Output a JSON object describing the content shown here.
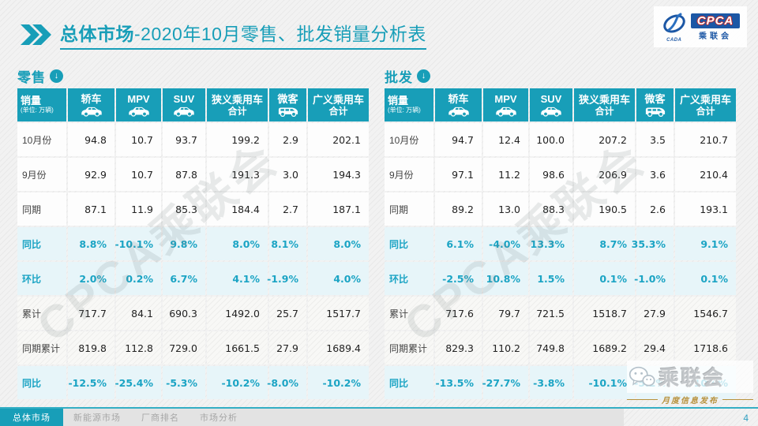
{
  "title": {
    "prefix_bold": "总体市场",
    "rest": "-2020年10月零售、批发销量分析表"
  },
  "logo": {
    "cpca_text": "CPCA",
    "org_text": "乘联会",
    "cada_text": "CADA"
  },
  "table_columns": {
    "sales_label": "销量",
    "sales_unit": "(单位: 万辆)",
    "cols": [
      {
        "label": "轿车",
        "icon": "sedan-car-icon"
      },
      {
        "label": "MPV",
        "icon": "mpv-car-icon"
      },
      {
        "label": "SUV",
        "icon": "suv-car-icon"
      },
      {
        "label": "狭义乘用车",
        "label2": "合计"
      },
      {
        "label": "微客",
        "icon": "van-icon"
      },
      {
        "label": "广义乘用车",
        "label2": "合计"
      }
    ]
  },
  "tables": [
    {
      "section_title": "零售",
      "rows": [
        {
          "label": "10月份",
          "type": "data",
          "values": [
            "94.8",
            "10.7",
            "93.7",
            "199.2",
            "2.9",
            "202.1"
          ]
        },
        {
          "label": "9月份",
          "type": "data",
          "values": [
            "92.9",
            "10.7",
            "87.8",
            "191.3",
            "3.0",
            "194.3"
          ]
        },
        {
          "label": "同期",
          "type": "data",
          "values": [
            "87.1",
            "11.9",
            "85.3",
            "184.4",
            "2.7",
            "187.1"
          ]
        },
        {
          "label": "同比",
          "type": "pct",
          "values": [
            "8.8%",
            "-10.1%",
            "9.8%",
            "8.0%",
            "8.1%",
            "8.0%"
          ]
        },
        {
          "label": "环比",
          "type": "pct",
          "values": [
            "2.0%",
            "0.2%",
            "6.7%",
            "4.1%",
            "-1.9%",
            "4.0%"
          ]
        },
        {
          "label": "累计",
          "type": "cum",
          "values": [
            "717.7",
            "84.1",
            "690.3",
            "1492.0",
            "25.7",
            "1517.7"
          ]
        },
        {
          "label": "同期累计",
          "type": "cum",
          "values": [
            "819.8",
            "112.8",
            "729.0",
            "1661.5",
            "27.9",
            "1689.4"
          ]
        },
        {
          "label": "同比",
          "type": "pct",
          "values": [
            "-12.5%",
            "-25.4%",
            "-5.3%",
            "-10.2%",
            "-8.0%",
            "-10.2%"
          ]
        }
      ]
    },
    {
      "section_title": "批发",
      "rows": [
        {
          "label": "10月份",
          "type": "data",
          "values": [
            "94.7",
            "12.4",
            "100.0",
            "207.2",
            "3.5",
            "210.7"
          ]
        },
        {
          "label": "9月份",
          "type": "data",
          "values": [
            "97.1",
            "11.2",
            "98.6",
            "206.9",
            "3.6",
            "210.4"
          ]
        },
        {
          "label": "同期",
          "type": "data",
          "values": [
            "89.2",
            "13.0",
            "88.3",
            "190.5",
            "2.6",
            "193.1"
          ]
        },
        {
          "label": "同比",
          "type": "pct",
          "values": [
            "6.1%",
            "-4.0%",
            "13.3%",
            "8.7%",
            "35.3%",
            "9.1%"
          ]
        },
        {
          "label": "环比",
          "type": "pct",
          "values": [
            "-2.5%",
            "10.8%",
            "1.5%",
            "0.1%",
            "-1.0%",
            "0.1%"
          ]
        },
        {
          "label": "累计",
          "type": "cum",
          "values": [
            "717.6",
            "79.7",
            "721.5",
            "1518.7",
            "27.9",
            "1546.7"
          ]
        },
        {
          "label": "同期累计",
          "type": "cum",
          "values": [
            "829.3",
            "110.2",
            "749.8",
            "1689.2",
            "29.4",
            "1718.6"
          ]
        },
        {
          "label": "同比",
          "type": "pct",
          "values": [
            "-13.5%",
            "-27.7%",
            "-3.8%",
            "-10.1%",
            "-5.2%",
            "-10.0%"
          ]
        }
      ]
    }
  ],
  "watermark_text": "CPCA乘联会",
  "wechat_badge": {
    "org": "乘联会",
    "subtitle": "月度信息发布"
  },
  "footer": {
    "tabs": [
      {
        "label": "总体市场",
        "active": true
      },
      {
        "label": "新能源市场",
        "active": false
      },
      {
        "label": "厂商排名",
        "active": false
      },
      {
        "label": "市场分析",
        "active": false
      }
    ],
    "page_number": "4"
  },
  "colors": {
    "teal": "#189EB8",
    "row_blue": "#e7f5f9",
    "gold": "#b8923d",
    "navy": "#1c57a5"
  }
}
